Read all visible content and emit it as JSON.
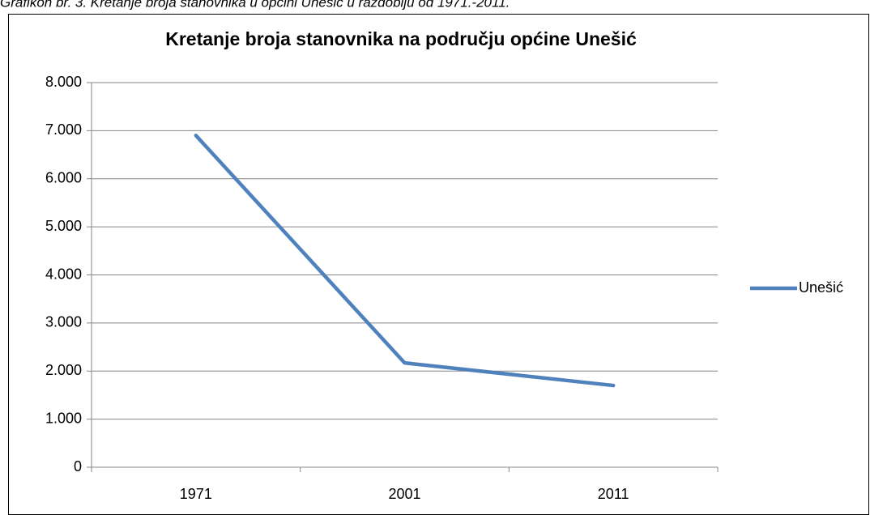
{
  "caption": "Grafikon br. 3. Kretanje broja stanovnika u općini Unešić u razdoblju od 1971.-2011.",
  "chart_data": {
    "type": "line",
    "title": "Kretanje broja stanovnika na području općine Unešić",
    "categories": [
      "1971",
      "2001",
      "2011"
    ],
    "series": [
      {
        "name": "Unešić",
        "color": "#4f81bd",
        "values": [
          6900,
          2170,
          1700
        ]
      }
    ],
    "ylim": [
      0,
      8000
    ],
    "yticks": [
      0,
      {
        "value": 1000,
        "label": "1.000"
      },
      {
        "value": 2000,
        "label": "2.000"
      },
      {
        "value": 3000,
        "label": "3.000"
      },
      {
        "value": 4000,
        "label": "4.000"
      },
      {
        "value": 5000,
        "label": "5.000"
      },
      {
        "value": 6000,
        "label": "6.000"
      },
      {
        "value": 7000,
        "label": "7.000"
      },
      {
        "value": 8000,
        "label": "8.000"
      }
    ],
    "grid": true,
    "legend": "right"
  }
}
